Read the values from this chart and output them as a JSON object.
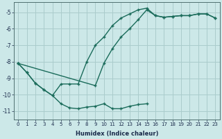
{
  "xlabel": "Humidex (Indice chaleur)",
  "bg_color": "#cce8e8",
  "grid_color": "#aacccc",
  "line_color": "#1a6b5a",
  "xlim_min": -0.5,
  "xlim_max": 23.5,
  "ylim_min": -11.5,
  "ylim_max": -4.4,
  "yticks": [
    -11,
    -10,
    -9,
    -8,
    -7,
    -6,
    -5
  ],
  "xticks": [
    0,
    1,
    2,
    3,
    4,
    5,
    6,
    7,
    8,
    9,
    10,
    11,
    12,
    13,
    14,
    15,
    16,
    17,
    18,
    19,
    20,
    21,
    22,
    23
  ],
  "line1_x": [
    0,
    1,
    2,
    3,
    4,
    5,
    6,
    7,
    8,
    9,
    10,
    11,
    12,
    13,
    14,
    15,
    16,
    17,
    18,
    19,
    20,
    21,
    22,
    23
  ],
  "line1_y": [
    -8.1,
    -8.65,
    -9.3,
    -9.7,
    -10.05,
    -10.55,
    -10.8,
    -10.85,
    -10.75,
    -10.7,
    -10.55,
    -10.85,
    -10.85,
    -10.7,
    -10.6,
    -10.55,
    null,
    null,
    null,
    null,
    null,
    null,
    null,
    null
  ],
  "line2_x": [
    0,
    1,
    2,
    3,
    4,
    5,
    6,
    7,
    8,
    9,
    10,
    11,
    12,
    13,
    14,
    15,
    16,
    17,
    18,
    19,
    20,
    21,
    22,
    23
  ],
  "line2_y": [
    -8.1,
    -8.65,
    -9.3,
    -9.7,
    -10.05,
    -9.35,
    -9.35,
    -9.35,
    -8.0,
    -7.0,
    -6.5,
    -5.8,
    -5.35,
    -5.1,
    -4.85,
    -4.75,
    -5.2,
    -5.3,
    -5.25,
    -5.2,
    -5.2,
    -5.1,
    -5.1,
    -5.35
  ],
  "line3_x": [
    0,
    1,
    2,
    3,
    4,
    5,
    6,
    7,
    8,
    9,
    10,
    11,
    12,
    13,
    14,
    15,
    16,
    17,
    18,
    19,
    20,
    21,
    22,
    23
  ],
  "line3_y": [
    -8.1,
    null,
    null,
    null,
    null,
    null,
    null,
    null,
    null,
    -9.45,
    -8.1,
    -7.2,
    -6.5,
    -6.0,
    -5.45,
    -4.85,
    -5.2,
    -5.3,
    -5.25,
    -5.2,
    -5.2,
    -5.1,
    -5.1,
    -5.35
  ]
}
